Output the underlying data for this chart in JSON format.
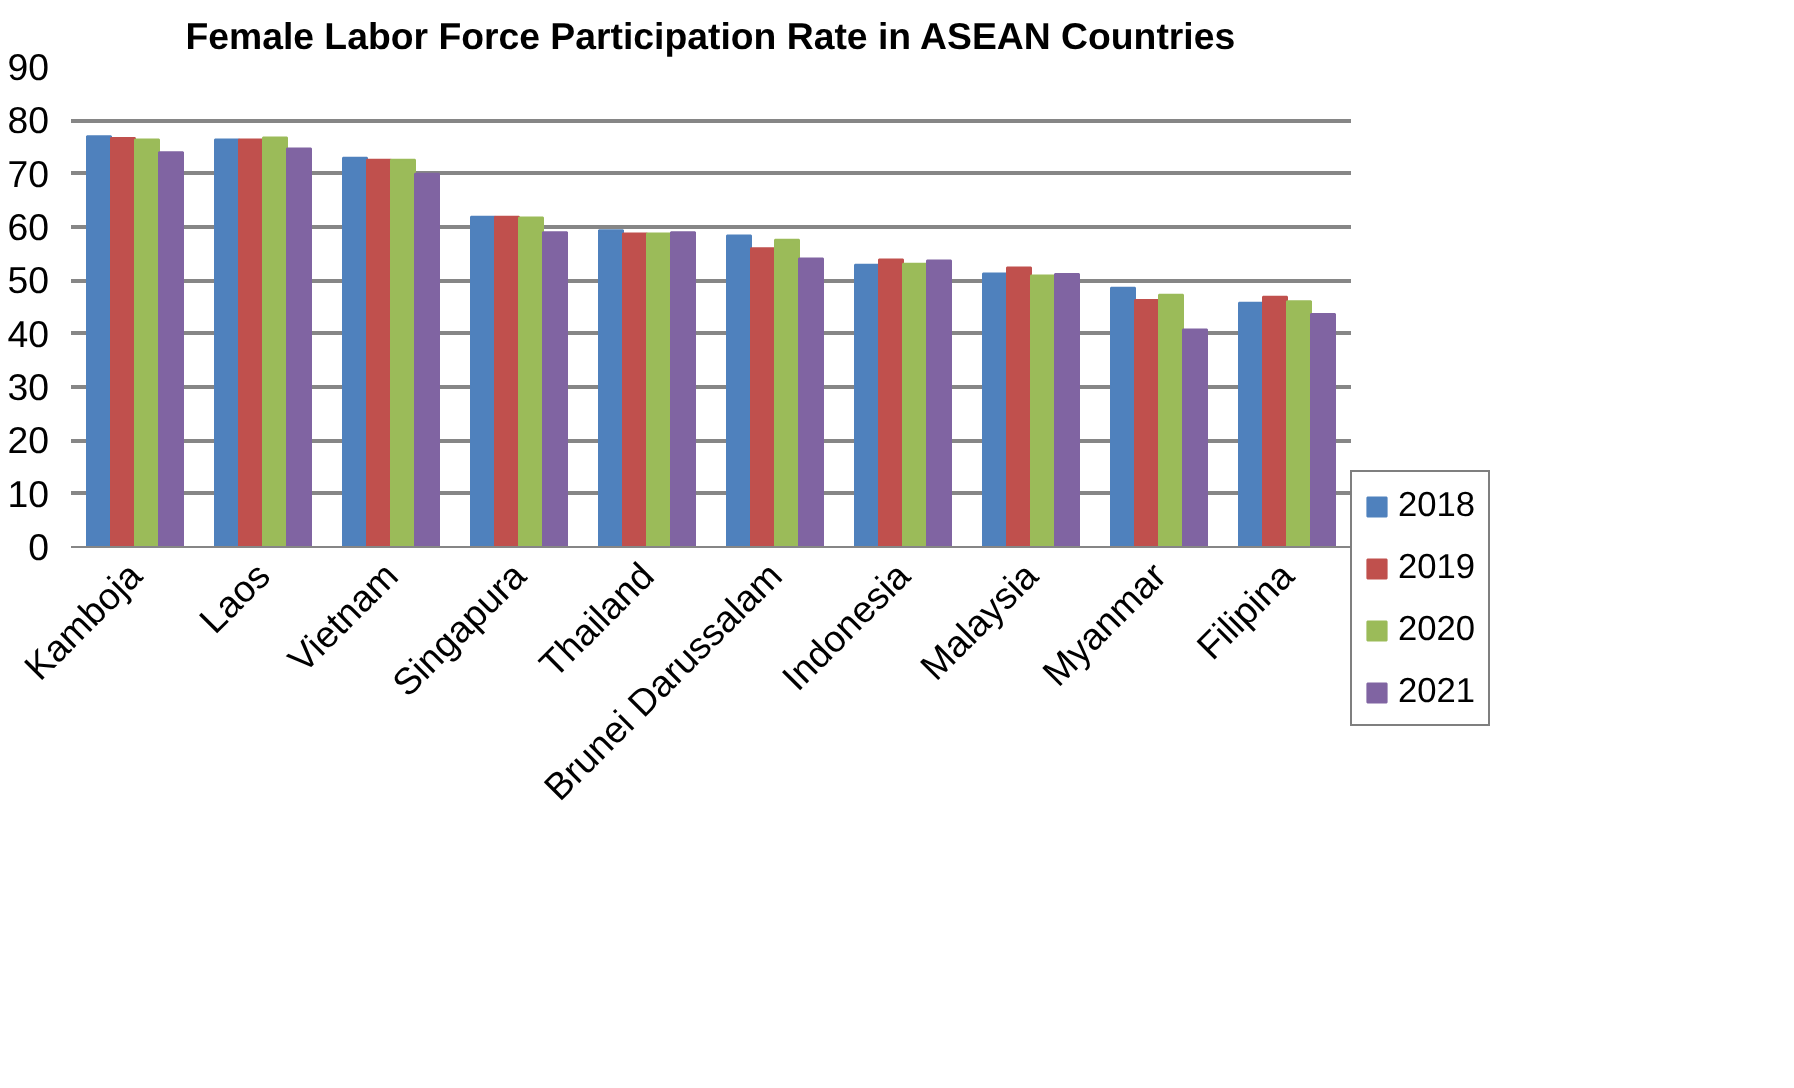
{
  "chart_data": {
    "type": "bar",
    "title": "Female Labor Force Participation Rate in ASEAN Countries",
    "categories": [
      "Kamboja",
      "Laos",
      "Vietnam",
      "Singapura",
      "Thailand",
      "Brunei Darussalam",
      "Indonesia",
      "Malaysia",
      "Myanmar",
      "Filipina"
    ],
    "series": [
      {
        "name": "2018",
        "color": "#4f81bd",
        "values": [
          77.0,
          76.4,
          73.0,
          61.9,
          59.4,
          58.4,
          52.9,
          51.3,
          48.6,
          45.8
        ]
      },
      {
        "name": "2019",
        "color": "#c0504d",
        "values": [
          76.7,
          76.4,
          72.6,
          61.9,
          58.8,
          56.0,
          53.9,
          52.4,
          46.3,
          46.9
        ]
      },
      {
        "name": "2020",
        "color": "#9bbb59",
        "values": [
          76.4,
          76.8,
          72.6,
          61.8,
          58.8,
          57.6,
          53.1,
          50.9,
          47.3,
          46.1
        ]
      },
      {
        "name": "2021",
        "color": "#8064a2",
        "values": [
          74.0,
          74.7,
          70.0,
          59.0,
          59.0,
          54.1,
          53.7,
          51.2,
          40.8,
          43.7
        ]
      }
    ],
    "ylim": [
      0,
      90
    ],
    "yticks": [
      0,
      10,
      20,
      30,
      40,
      50,
      60,
      70,
      80,
      90
    ],
    "grid": "y",
    "legend": "right"
  }
}
